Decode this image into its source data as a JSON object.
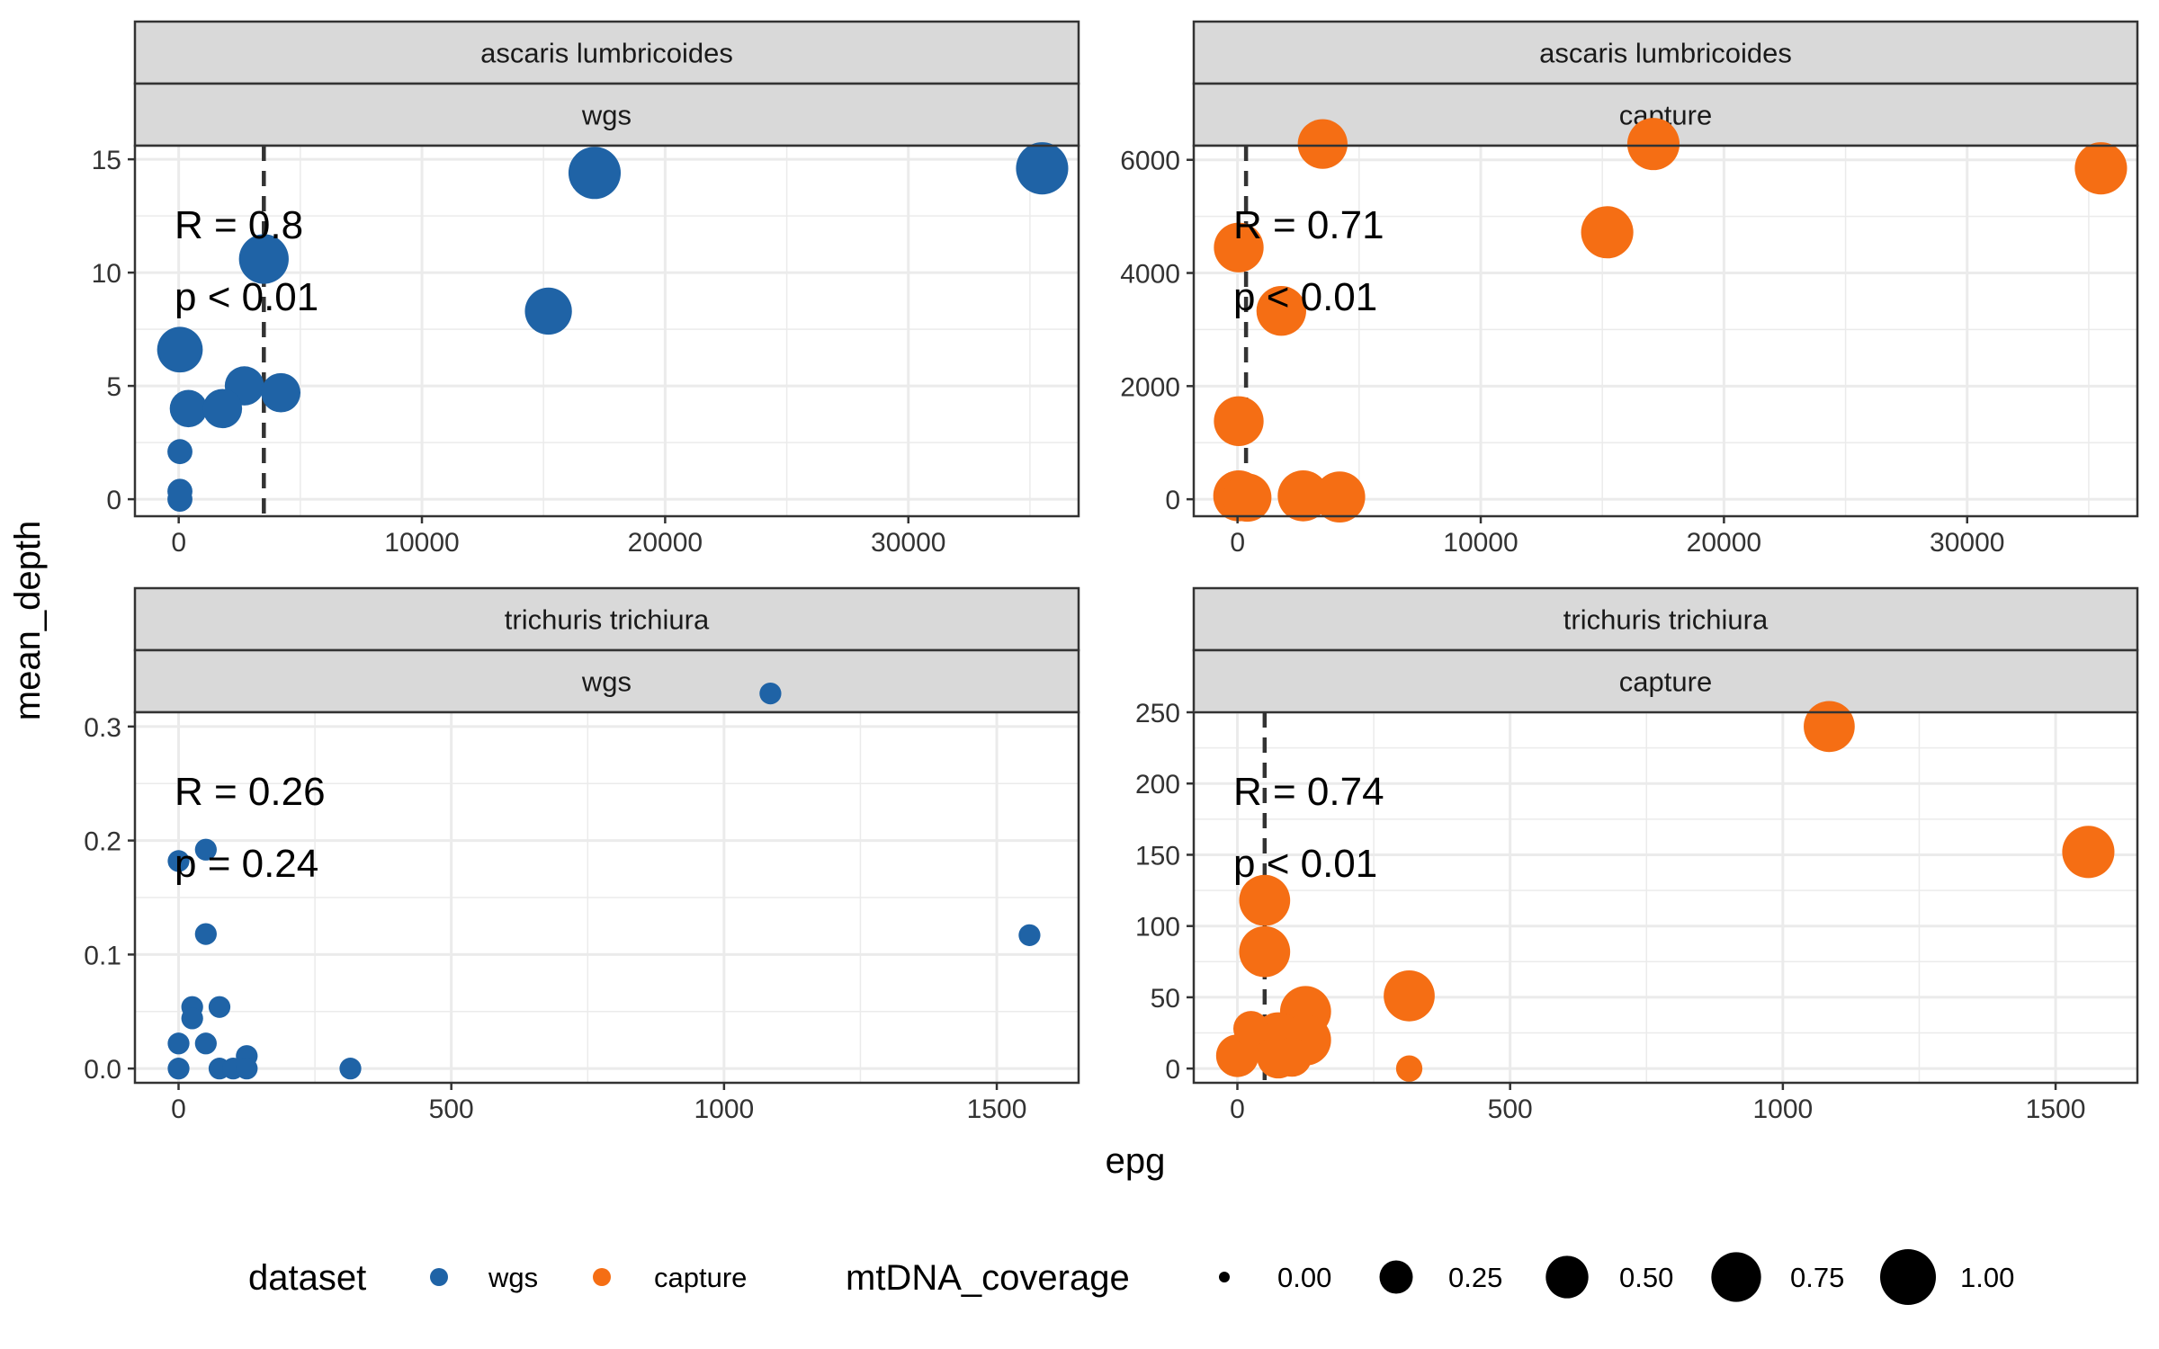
{
  "chart_data": {
    "type": "scatter",
    "x_label": "epg",
    "y_label": "mean_depth",
    "colors": {
      "wgs": "#1F63A6",
      "capture": "#F56E14",
      "panel_border": "#333333",
      "strip_fill": "#D9D9D9",
      "grid": "#EBEBEB",
      "vline": "#333333"
    },
    "legend": {
      "position": "bottom",
      "dataset_title": "dataset",
      "dataset_items": [
        {
          "label": "wgs",
          "series": "wgs"
        },
        {
          "label": "capture",
          "series": "capture"
        }
      ],
      "size_title": "mtDNA_coverage",
      "size_items": [
        {
          "label": "0.00",
          "value": 0.0
        },
        {
          "label": "0.25",
          "value": 0.25
        },
        {
          "label": "0.50",
          "value": 0.5
        },
        {
          "label": "0.75",
          "value": 0.75
        },
        {
          "label": "1.00",
          "value": 1.0
        }
      ]
    },
    "panels": [
      {
        "id": "ascaris-wgs",
        "strip_top": "ascaris lumbricoides",
        "strip_bottom": "wgs",
        "series": "wgs",
        "xlim": [
          -1800,
          37000
        ],
        "ylim": [
          -0.75,
          15.6
        ],
        "x_ticks": [
          0,
          10000,
          20000,
          30000
        ],
        "x_tick_labels": [
          "0",
          "10000",
          "20000",
          "30000"
        ],
        "y_ticks": [
          0,
          5,
          10,
          15
        ],
        "y_tick_labels": [
          "0",
          "5",
          "10",
          "15"
        ],
        "vline_x": 3500,
        "annotation_r": "R = 0.8",
        "annotation_p": "p < 0.01",
        "points": [
          {
            "x": 35500,
            "y": 14.6,
            "cov": 0.85
          },
          {
            "x": 17100,
            "y": 14.4,
            "cov": 0.85
          },
          {
            "x": 3500,
            "y": 10.6,
            "cov": 0.75
          },
          {
            "x": 15200,
            "y": 8.3,
            "cov": 0.65
          },
          {
            "x": 50,
            "y": 6.6,
            "cov": 0.6
          },
          {
            "x": 2700,
            "y": 5.0,
            "cov": 0.4
          },
          {
            "x": 4200,
            "y": 4.7,
            "cov": 0.4
          },
          {
            "x": 400,
            "y": 4.0,
            "cov": 0.35
          },
          {
            "x": 1800,
            "y": 4.0,
            "cov": 0.4
          },
          {
            "x": 50,
            "y": 2.1,
            "cov": 0.1
          },
          {
            "x": 50,
            "y": 0.35,
            "cov": 0.1
          },
          {
            "x": 50,
            "y": 0.0,
            "cov": 0.1
          }
        ]
      },
      {
        "id": "ascaris-capture",
        "strip_top": "ascaris lumbricoides",
        "strip_bottom": "capture",
        "series": "capture",
        "xlim": [
          -1800,
          37000
        ],
        "ylim": [
          -300,
          6250
        ],
        "x_ticks": [
          0,
          10000,
          20000,
          30000
        ],
        "x_tick_labels": [
          "0",
          "10000",
          "20000",
          "30000"
        ],
        "y_ticks": [
          0,
          2000,
          4000,
          6000
        ],
        "y_tick_labels": [
          "0",
          "2000",
          "4000",
          "6000"
        ],
        "vline_x": 350,
        "annotation_r": "R = 0.71",
        "annotation_p": "p < 0.01",
        "points": [
          {
            "x": 3500,
            "y": 6280,
            "cov": 0.75
          },
          {
            "x": 17100,
            "y": 6280,
            "cov": 0.85
          },
          {
            "x": 35500,
            "y": 5850,
            "cov": 0.85
          },
          {
            "x": 15200,
            "y": 4720,
            "cov": 0.85
          },
          {
            "x": 50,
            "y": 4450,
            "cov": 0.75
          },
          {
            "x": 1800,
            "y": 3330,
            "cov": 0.75
          },
          {
            "x": 50,
            "y": 1380,
            "cov": 0.75
          },
          {
            "x": 50,
            "y": 60,
            "cov": 0.8
          },
          {
            "x": 400,
            "y": 30,
            "cov": 0.7
          },
          {
            "x": 2700,
            "y": 60,
            "cov": 0.8
          },
          {
            "x": 4200,
            "y": 40,
            "cov": 0.8
          }
        ]
      },
      {
        "id": "trichuris-wgs",
        "strip_top": "trichuris trichiura",
        "strip_bottom": "wgs",
        "series": "wgs",
        "xlim": [
          -80,
          1650
        ],
        "ylim": [
          -0.0125,
          0.3125
        ],
        "x_ticks": [
          0,
          500,
          1000,
          1500
        ],
        "x_tick_labels": [
          "0",
          "500",
          "1000",
          "1500"
        ],
        "y_ticks": [
          0.0,
          0.1,
          0.2,
          0.3
        ],
        "y_tick_labels": [
          "0.0",
          "0.1",
          "0.2",
          "0.3"
        ],
        "vline_x": null,
        "annotation_r": "R = 0.26",
        "annotation_p": "p = 0.24",
        "points": [
          {
            "x": 1085,
            "y": 0.329,
            "cov": 0.06
          },
          {
            "x": 50,
            "y": 0.192,
            "cov": 0.06
          },
          {
            "x": 0,
            "y": 0.182,
            "cov": 0.06
          },
          {
            "x": 50,
            "y": 0.118,
            "cov": 0.06
          },
          {
            "x": 1560,
            "y": 0.117,
            "cov": 0.06
          },
          {
            "x": 25,
            "y": 0.054,
            "cov": 0.06
          },
          {
            "x": 75,
            "y": 0.054,
            "cov": 0.06
          },
          {
            "x": 25,
            "y": 0.044,
            "cov": 0.06
          },
          {
            "x": 0,
            "y": 0.022,
            "cov": 0.06
          },
          {
            "x": 50,
            "y": 0.022,
            "cov": 0.06
          },
          {
            "x": 125,
            "y": 0.011,
            "cov": 0.06
          },
          {
            "x": 0,
            "y": 0.0,
            "cov": 0.06
          },
          {
            "x": 75,
            "y": 0.0,
            "cov": 0.06
          },
          {
            "x": 100,
            "y": 0.0,
            "cov": 0.06
          },
          {
            "x": 125,
            "y": 0.0,
            "cov": 0.06
          },
          {
            "x": 315,
            "y": 0.0,
            "cov": 0.06
          }
        ]
      },
      {
        "id": "trichuris-capture",
        "strip_top": "trichuris trichiura",
        "strip_bottom": "capture",
        "series": "capture",
        "xlim": [
          -80,
          1650
        ],
        "ylim": [
          -10,
          250
        ],
        "x_ticks": [
          0,
          500,
          1000,
          1500
        ],
        "x_tick_labels": [
          "0",
          "500",
          "1000",
          "1500"
        ],
        "y_ticks": [
          0,
          50,
          100,
          150,
          200,
          250
        ],
        "y_tick_labels": [
          "0",
          "50",
          "100",
          "150",
          "200",
          "250"
        ],
        "vline_x": 50,
        "annotation_r": "R = 0.74",
        "annotation_p": "p < 0.01",
        "points": [
          {
            "x": 1085,
            "y": 240,
            "cov": 0.8
          },
          {
            "x": 1560,
            "y": 152,
            "cov": 0.85
          },
          {
            "x": 50,
            "y": 118,
            "cov": 0.8
          },
          {
            "x": 50,
            "y": 82,
            "cov": 0.8
          },
          {
            "x": 315,
            "y": 51,
            "cov": 0.8
          },
          {
            "x": 125,
            "y": 40,
            "cov": 0.8
          },
          {
            "x": 75,
            "y": 22,
            "cov": 0.75
          },
          {
            "x": 125,
            "y": 20,
            "cov": 0.8
          },
          {
            "x": 0,
            "y": 9,
            "cov": 0.5
          },
          {
            "x": 75,
            "y": 8,
            "cov": 0.5
          },
          {
            "x": 100,
            "y": 8,
            "cov": 0.4
          },
          {
            "x": 25,
            "y": 28,
            "cov": 0.3
          },
          {
            "x": 315,
            "y": 0,
            "cov": 0.12
          }
        ]
      }
    ]
  }
}
